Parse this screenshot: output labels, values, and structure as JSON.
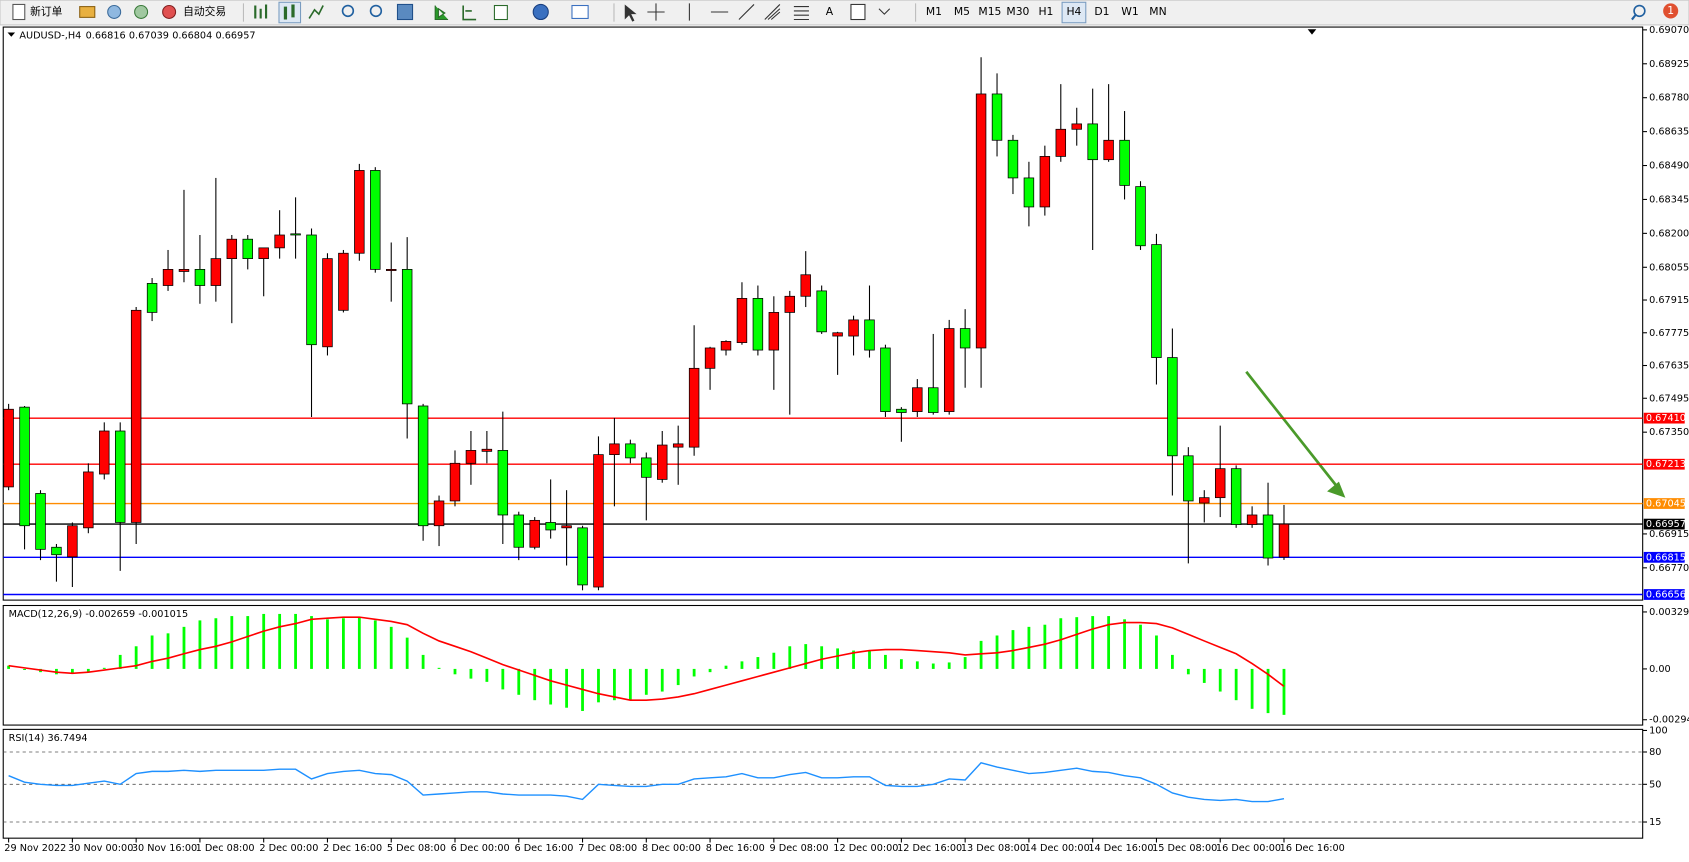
{
  "toolbar": {
    "new_order": "新订单",
    "auto_trading": "自动交易",
    "text_tool": "A",
    "timeframes": [
      "M1",
      "M5",
      "M15",
      "M30",
      "H1",
      "H4",
      "D1",
      "W1",
      "MN"
    ],
    "active_timeframe": "H4",
    "notifications": 1
  },
  "chart_data": [
    {
      "type": "candlestick",
      "symbol": "AUDUSD-,H4",
      "up_color": "#ff0000",
      "down_color": "#00ff00",
      "categories": [
        "29 Nov 2022",
        null,
        null,
        null,
        "30 Nov 00:00",
        null,
        null,
        null,
        "30 Nov 16:00",
        null,
        null,
        null,
        "1 Dec 08:00",
        null,
        null,
        null,
        "2 Dec 00:00",
        null,
        null,
        null,
        "2 Dec 16:00",
        null,
        null,
        null,
        "5 Dec 08:00",
        null,
        null,
        null,
        "6 Dec 00:00",
        null,
        null,
        null,
        "6 Dec 16:00",
        null,
        null,
        null,
        "7 Dec 08:00",
        null,
        null,
        null,
        "8 Dec 00:00",
        null,
        null,
        null,
        "8 Dec 16:00",
        null,
        null,
        null,
        "9 Dec 08:00",
        null,
        null,
        null,
        "12 Dec 00:00",
        null,
        null,
        null,
        "12 Dec 16:00",
        null,
        null,
        null,
        "13 Dec 08:00",
        null,
        null,
        null,
        "14 Dec 00:00",
        null,
        null,
        null,
        "14 Dec 16:00",
        null,
        null,
        null,
        "15 Dec 08:00",
        null,
        null,
        null,
        "16 Dec 00:00",
        null,
        null,
        null,
        "16 Dec 16:00"
      ],
      "open": [
        0.67116,
        0.67457,
        0.67088,
        0.66858,
        0.66817,
        0.66941,
        0.67171,
        0.67355,
        0.66964,
        0.67986,
        0.67977,
        0.68037,
        0.68046,
        0.67977,
        0.68092,
        0.68175,
        0.68092,
        0.68138,
        0.68198,
        0.68193,
        0.67715,
        0.67871,
        0.68115,
        0.68469,
        0.68041,
        0.68046,
        0.67462,
        0.6695,
        0.67056,
        0.67217,
        0.67268,
        0.67272,
        0.66996,
        0.66858,
        0.66964,
        0.66941,
        0.66941,
        0.66688,
        0.67254,
        0.673,
        0.6724,
        0.67148,
        0.67286,
        0.67286,
        0.67623,
        0.67701,
        0.67733,
        0.67922,
        0.67701,
        0.67862,
        0.67931,
        0.67954,
        0.67761,
        0.67761,
        0.6783,
        0.6771,
        0.67448,
        0.67438,
        0.6754,
        0.67438,
        0.67793,
        0.6771,
        0.68796,
        0.68598,
        0.68437,
        0.68313,
        0.68529,
        0.68645,
        0.68668,
        0.68515,
        0.68598,
        0.684,
        0.68152,
        0.67669,
        0.67249,
        0.67047,
        0.6707,
        0.67194,
        0.66955,
        0.66996,
        0.66816
      ],
      "high": [
        0.67471,
        0.67462,
        0.67102,
        0.66872,
        0.66964,
        0.67217,
        0.67392,
        0.67392,
        0.67885,
        0.68009,
        0.68129,
        0.68386,
        0.68193,
        0.68437,
        0.68193,
        0.68193,
        0.68138,
        0.68299,
        0.68354,
        0.68221,
        0.68115,
        0.68129,
        0.68497,
        0.68483,
        0.68161,
        0.68184,
        0.67471,
        0.67079,
        0.67272,
        0.67355,
        0.67355,
        0.67438,
        0.6701,
        0.66987,
        0.67148,
        0.67102,
        0.6695,
        0.67332,
        0.67411,
        0.67318,
        0.67263,
        0.67355,
        0.67378,
        0.67807,
        0.67715,
        0.67743,
        0.67991,
        0.67977,
        0.67931,
        0.67954,
        0.68124,
        0.67977,
        0.67779,
        0.67848,
        0.67977,
        0.67724,
        0.67457,
        0.67577,
        0.6777,
        0.6783,
        0.67876,
        0.68953,
        0.68884,
        0.68621,
        0.68506,
        0.68575,
        0.68838,
        0.68737,
        0.68819,
        0.68838,
        0.68723,
        0.68423,
        0.68198,
        0.67793,
        0.67286,
        0.67102,
        0.67378,
        0.67208,
        0.67033,
        0.67134,
        0.67039
      ],
      "low": [
        0.67102,
        0.66849,
        0.66803,
        0.66711,
        0.66688,
        0.66918,
        0.67148,
        0.66757,
        0.66872,
        0.67825,
        0.67954,
        0.67991,
        0.67899,
        0.67908,
        0.67816,
        0.68046,
        0.67931,
        0.68092,
        0.68092,
        0.67415,
        0.67678,
        0.67862,
        0.68083,
        0.68032,
        0.67908,
        0.67323,
        0.66886,
        0.66863,
        0.67033,
        0.67125,
        0.67217,
        0.66872,
        0.66803,
        0.66849,
        0.66895,
        0.6678,
        0.66674,
        0.66674,
        0.67033,
        0.67217,
        0.66973,
        0.67134,
        0.67125,
        0.67249,
        0.67531,
        0.67678,
        0.67724,
        0.67678,
        0.67531,
        0.67425,
        0.67885,
        0.6777,
        0.67595,
        0.67678,
        0.67669,
        0.67415,
        0.67309,
        0.67415,
        0.67425,
        0.67425,
        0.6754,
        0.6754,
        0.68529,
        0.68368,
        0.6823,
        0.68276,
        0.68506,
        0.68575,
        0.68129,
        0.68506,
        0.68345,
        0.68129,
        0.67554,
        0.67079,
        0.66789,
        0.66964,
        0.66987,
        0.66941,
        0.66941,
        0.6678,
        0.66804
      ],
      "close": [
        0.67448,
        0.6695,
        0.66849,
        0.66826,
        0.6695,
        0.6718,
        0.67355,
        0.66964,
        0.67871,
        0.67862,
        0.68046,
        0.68046,
        0.67977,
        0.68092,
        0.68175,
        0.68092,
        0.68138,
        0.68193,
        0.68193,
        0.67724,
        0.68092,
        0.68115,
        0.68469,
        0.68046,
        0.68046,
        0.67471,
        0.6695,
        0.67056,
        0.67217,
        0.67272,
        0.67277,
        0.66996,
        0.66858,
        0.66973,
        0.66932,
        0.6695,
        0.66697,
        0.67254,
        0.673,
        0.6724,
        0.67157,
        0.67295,
        0.673,
        0.67623,
        0.6771,
        0.67738,
        0.67922,
        0.67701,
        0.67862,
        0.67931,
        0.68023,
        0.67779,
        0.67775,
        0.6783,
        0.67701,
        0.67438,
        0.67434,
        0.6754,
        0.67434,
        0.67793,
        0.6771,
        0.68796,
        0.68598,
        0.68437,
        0.68313,
        0.68529,
        0.68645,
        0.68668,
        0.68515,
        0.68598,
        0.68405,
        0.68147,
        0.67669,
        0.67249,
        0.67056,
        0.6707,
        0.67194,
        0.66955,
        0.66996,
        0.66812,
        0.66957
      ],
      "ylim": [
        0.66632,
        0.69082
      ],
      "yticks": [
        {
          "value": 0.6907,
          "label": "0.69070"
        },
        0.68925,
        {
          "value": 0.6878,
          "label": "0.68780"
        },
        0.68635,
        {
          "value": 0.6849,
          "label": "0.68490"
        },
        0.68345,
        {
          "value": 0.682,
          "label": "0.68200"
        },
        0.68055,
        0.67915,
        0.67775,
        0.67635,
        0.67495,
        {
          "value": 0.6735,
          "label": "0.67350"
        },
        0.66915,
        {
          "value": 0.6677,
          "label": "0.66770"
        }
      ],
      "levels": [
        {
          "value": 0.6741,
          "label": "0.67410",
          "color": "#ff0000"
        },
        {
          "value": 0.67213,
          "color": "#ff0000"
        },
        {
          "value": 0.67045,
          "color": "#ff8c00"
        },
        {
          "value": 0.66957,
          "color": "#000000"
        },
        {
          "value": 0.66815,
          "color": "#0000ff"
        },
        {
          "value": 0.66656,
          "color": "#0000ff"
        }
      ],
      "grid": false
    },
    {
      "type": "macd",
      "title": "MACD(12,26,9)",
      "series": [
        {
          "color": "#00ff00",
          "values": [
            0.000187,
            -6.2e-05,
            -0.000187,
            -0.000312,
            -0.00025,
            -0.000187,
            6.2e-05,
            0.000811,
            0.00131,
            0.001934,
            0.002059,
            0.002434,
            0.002808,
            0.002933,
            0.003058,
            0.003058,
            0.003182,
            0.003182,
            0.003182,
            0.003058,
            0.00287,
            0.002933,
            0.002995,
            0.002808,
            0.002434,
            0.00181,
            0.000811,
            6.2e-05,
            -0.000312,
            -0.000562,
            -0.000749,
            -0.001186,
            -0.001498,
            -0.00181,
            -0.002059,
            -0.002246,
            -0.002434,
            -0.001934,
            -0.00181,
            -0.00181,
            -0.001498,
            -0.00131,
            -0.000936,
            -0.000437,
            -0.000187,
            0.000187,
            0.000437,
            0.000686,
            0.000936,
            0.00131,
            0.001435,
            0.00131,
            0.001186,
            0.001061,
            0.001061,
            0.000811,
            0.000562,
            0.000437,
            0.000312,
            0.000374,
            0.000686,
            0.001622,
            0.001934,
            0.002246,
            0.002434,
            0.002558,
            0.002933,
            0.002995,
            0.003058,
            0.003058,
            0.00287,
            0.002558,
            0.001934,
            0.000811,
            -0.000312,
            -0.000811,
            -0.00131,
            -0.00181,
            -0.002309,
            -0.002558,
            -0.002659
          ]
        },
        {
          "color": "#ff0000",
          "values": [
            0.000187,
            6.2e-05,
            -6.2e-05,
            -0.000187,
            -0.00025,
            -0.000187,
            -6.2e-05,
            6.2e-05,
            0.000187,
            0.000437,
            0.000624,
            0.000874,
            0.001123,
            0.00131,
            0.00156,
            0.001872,
            0.002184,
            0.002434,
            0.002621,
            0.00287,
            0.002933,
            0.002995,
            0.002995,
            0.00287,
            0.002746,
            0.002558,
            0.002059,
            0.001622,
            0.00131,
            0.000998,
            0.000624,
            0.00025,
            -6.2e-05,
            -0.000374,
            -0.000686,
            -0.000936,
            -0.001186,
            -0.001435,
            -0.001622,
            -0.00181,
            -0.00181,
            -0.001747,
            -0.001622,
            -0.001435,
            -0.001186,
            -0.000936,
            -0.000686,
            -0.000437,
            -0.000187,
            6.2e-05,
            0.000312,
            0.000562,
            0.000749,
            0.000936,
            0.001061,
            0.001123,
            0.001123,
            0.001061,
            0.000998,
            0.000936,
            0.000811,
            0.000874,
            0.000936,
            0.001061,
            0.001248,
            0.001435,
            0.001685,
            0.001997,
            0.002309,
            0.002558,
            0.002683,
            0.002683,
            0.002621,
            0.002371,
            0.001997,
            0.001622,
            0.001248,
            0.000874,
            0.000312,
            -0.000312,
            -0.001015
          ]
        }
      ],
      "ylim": [
        -0.00325,
        0.00367
      ],
      "yticks": [
        0.003297,
        {
          "value": 0,
          "label": "0.00"
        },
        -0.002942
      ],
      "grid": false
    },
    {
      "type": "line",
      "title": "RSI(14)",
      "color": "#1e90ff",
      "values": [
        58,
        52,
        50,
        49,
        49,
        51,
        53,
        50,
        60,
        62,
        62,
        63,
        62,
        63,
        63,
        63,
        63,
        64,
        64,
        55,
        60,
        62,
        63,
        60,
        59,
        53,
        40,
        41,
        42,
        43,
        43,
        41,
        40,
        40,
        40,
        39,
        36,
        50,
        49,
        48,
        48,
        50,
        50,
        55,
        56,
        57,
        60,
        56,
        56,
        59,
        61,
        56,
        56,
        57,
        57,
        49,
        48,
        48,
        50,
        55,
        54,
        70,
        66,
        63,
        60,
        61,
        63,
        65,
        62,
        61,
        58,
        56,
        50,
        42,
        38,
        36,
        35,
        36,
        34,
        34,
        36.7494
      ],
      "ylim": [
        0,
        100
      ],
      "yticks": [
        100,
        80,
        50,
        15
      ],
      "grid": true
    }
  ]
}
